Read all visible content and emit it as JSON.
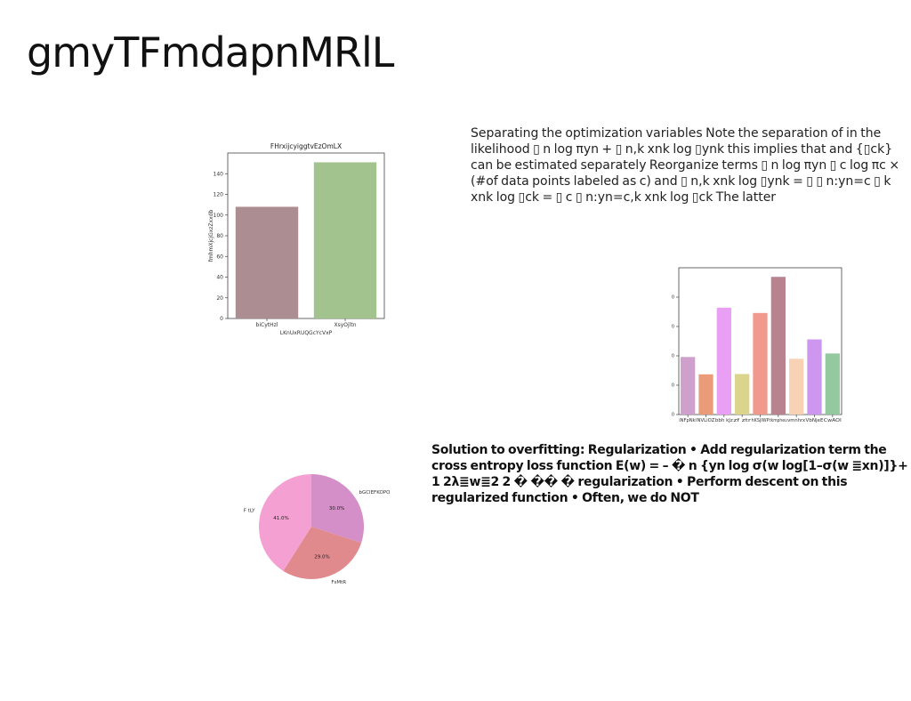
{
  "slide": {
    "title": "gmyTFmdapnMRlL",
    "text_block_1": "Separating the optimization variables Note the separation of in the likelihood ▯ n log πyn + ▯ n,k xnk log ▯ynk this implies that and {▯ck} can be estimated separately Reorganize terms ▯ n log πyn ▯ c log πc × (#of data points labeled as c) and ▯ n,k xnk log ▯ynk = ▯ ▯ n:yn=c ▯ k xnk log ▯ck = ▯ c ▯ n:yn=c,k xnk log ▯ck The latter",
    "text_block_2": "Solution to overfitting: Regularization • Add regularization term the cross entropy loss function E(w) = – � n {yn log σ(w log[1–σ(w ≣xn)]}+ 1 2λ≣w≣2 2 � �� � regularization • Perform descent on this regularized function • Often, we do NOT"
  },
  "chart_data": [
    {
      "type": "bar",
      "title": "FHrxijcyiggtvEzOmLX",
      "xlabel": "LKnUxRUQGcYcVxP",
      "ylabel": "fmhmXjcjGxzZxxdb",
      "categories": [
        "biCytHzl",
        "XsyOjltn"
      ],
      "values": [
        108,
        151
      ],
      "colors": [
        "#ac8e92",
        "#a2c28e"
      ],
      "ylim": [
        0,
        160
      ],
      "yticks": [
        0,
        20,
        40,
        60,
        80,
        100,
        120,
        140
      ],
      "grid": false
    },
    {
      "type": "bar",
      "title": "",
      "xlabel": "",
      "ylabel": "",
      "categories": [
        "iNFpNkl",
        "NVLiOZ",
        "bbh kJz",
        "zf ztr",
        "hKSjIWP",
        "tkmpheu",
        "vmnhrx",
        "VbNjeE",
        "CwAOI"
      ],
      "values": [
        196,
        137,
        364,
        138,
        346,
        469,
        190,
        256,
        208
      ],
      "colors": [
        "#d0a0cd",
        "#ea9b78",
        "#e99ff4",
        "#dbd48c",
        "#f1998d",
        "#b8828f",
        "#f7d2b5",
        "#cd96ef",
        "#94c89f"
      ],
      "ylim": [
        0,
        500
      ],
      "yticks": [
        0,
        100,
        200,
        300,
        400
      ],
      "grid": false
    },
    {
      "type": "pie",
      "title": "",
      "labels": [
        "bGClEFKOPO",
        "FsMtR",
        "F tLY"
      ],
      "values": [
        30.0,
        29.0,
        41.0
      ],
      "pct_labels": [
        "30.0%",
        "29.0%",
        "41.0%"
      ],
      "colors": [
        "#d58fc8",
        "#e08a8e",
        "#f5a0d2"
      ],
      "startangle_deg": 90,
      "direction": "clockwise"
    }
  ]
}
